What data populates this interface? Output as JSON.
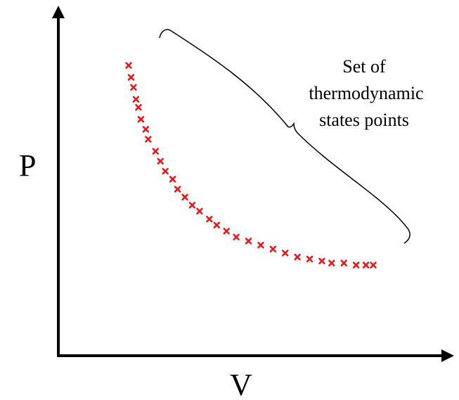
{
  "axes": {
    "y_label": "P",
    "x_label": "V"
  },
  "annotation": {
    "lines": [
      "Set of",
      "thermodynamic",
      "states points"
    ]
  },
  "colors": {
    "points": "#e8191b",
    "axes": "#000000",
    "brace": "#000000"
  },
  "chart_data": {
    "type": "scatter",
    "marker": "x",
    "title": "",
    "xlabel": "V",
    "ylabel": "P",
    "grid": false,
    "points_description_units": "relative",
    "series": [
      {
        "x": [
          0.0,
          0.01,
          0.02,
          0.03,
          0.04,
          0.05,
          0.07,
          0.08,
          0.11,
          0.13,
          0.15,
          0.18,
          0.2,
          0.23,
          0.26,
          0.29,
          0.33,
          0.36,
          0.4,
          0.44,
          0.49,
          0.54,
          0.59,
          0.64,
          0.69,
          0.74,
          0.79,
          0.83,
          0.88,
          0.93,
          0.97,
          1.0
        ],
        "y": [
          1.0,
          0.94,
          0.89,
          0.83,
          0.79,
          0.73,
          0.68,
          0.63,
          0.57,
          0.52,
          0.47,
          0.43,
          0.38,
          0.34,
          0.3,
          0.27,
          0.23,
          0.2,
          0.17,
          0.14,
          0.12,
          0.1,
          0.08,
          0.06,
          0.04,
          0.03,
          0.02,
          0.01,
          0.01,
          0.0,
          0.0,
          0.0
        ]
      }
    ]
  }
}
